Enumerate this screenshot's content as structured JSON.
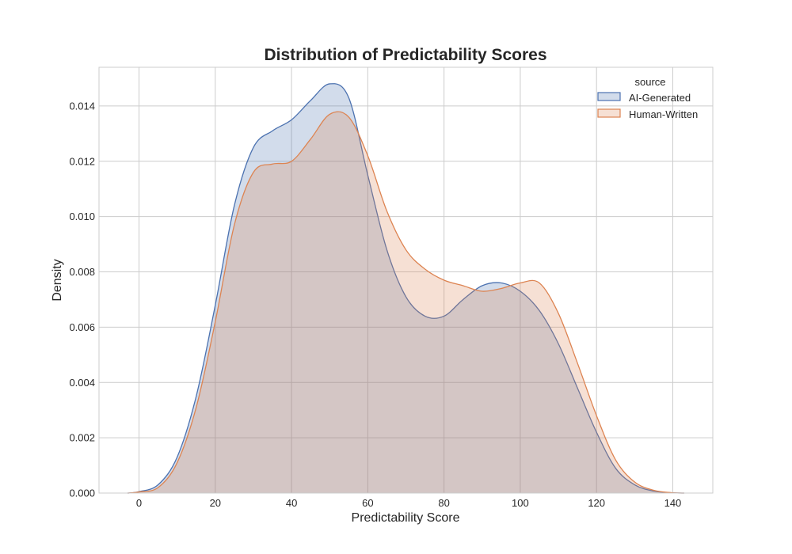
{
  "chart_data": {
    "type": "area",
    "title": "Distribution of Predictability Scores",
    "xlabel": "Predictability Score",
    "ylabel": "Density",
    "xlim": [
      -10.5,
      150.5
    ],
    "ylim": [
      0,
      0.0154
    ],
    "xticks": [
      0,
      20,
      40,
      60,
      80,
      100,
      120,
      140
    ],
    "xtick_labels": [
      "0",
      "20",
      "40",
      "60",
      "80",
      "100",
      "120",
      "140"
    ],
    "yticks": [
      0,
      0.002,
      0.004,
      0.006,
      0.008,
      0.01,
      0.012,
      0.014
    ],
    "ytick_labels": [
      "0.000",
      "0.002",
      "0.004",
      "0.006",
      "0.008",
      "0.010",
      "0.012",
      "0.014"
    ],
    "grid": true,
    "legend": {
      "title": "source",
      "placement": "top-right"
    },
    "series": [
      {
        "name": "AI-Generated",
        "color": "#4c72b0",
        "x": [
          -3,
          0,
          5,
          10,
          15,
          20,
          25,
          30,
          35,
          40,
          45,
          50,
          55,
          60,
          65,
          70,
          75,
          80,
          85,
          90,
          95,
          100,
          105,
          110,
          115,
          120,
          125,
          130,
          135,
          140,
          143
        ],
        "y": [
          0.0,
          5e-05,
          0.0003,
          0.0013,
          0.0035,
          0.0068,
          0.0104,
          0.0125,
          0.0131,
          0.0135,
          0.0142,
          0.0148,
          0.0143,
          0.0115,
          0.0088,
          0.0071,
          0.0064,
          0.0064,
          0.007,
          0.0075,
          0.0076,
          0.0073,
          0.0066,
          0.0054,
          0.0038,
          0.0022,
          0.0009,
          0.0003,
          7e-05,
          1e-05,
          0.0
        ]
      },
      {
        "name": "Human-Written",
        "color": "#dd8452",
        "x": [
          -3,
          0,
          5,
          10,
          15,
          20,
          25,
          30,
          35,
          40,
          45,
          50,
          55,
          60,
          65,
          70,
          75,
          80,
          85,
          90,
          95,
          100,
          105,
          110,
          115,
          120,
          125,
          130,
          135,
          140,
          143
        ],
        "y": [
          0.0,
          4e-05,
          0.0002,
          0.0011,
          0.0031,
          0.0062,
          0.0097,
          0.0116,
          0.0119,
          0.012,
          0.0128,
          0.0137,
          0.0136,
          0.0122,
          0.0102,
          0.0088,
          0.0081,
          0.0077,
          0.0075,
          0.0073,
          0.0074,
          0.0076,
          0.0076,
          0.0065,
          0.0047,
          0.0028,
          0.0012,
          0.0004,
          0.0001,
          1e-05,
          0.0
        ]
      }
    ]
  }
}
